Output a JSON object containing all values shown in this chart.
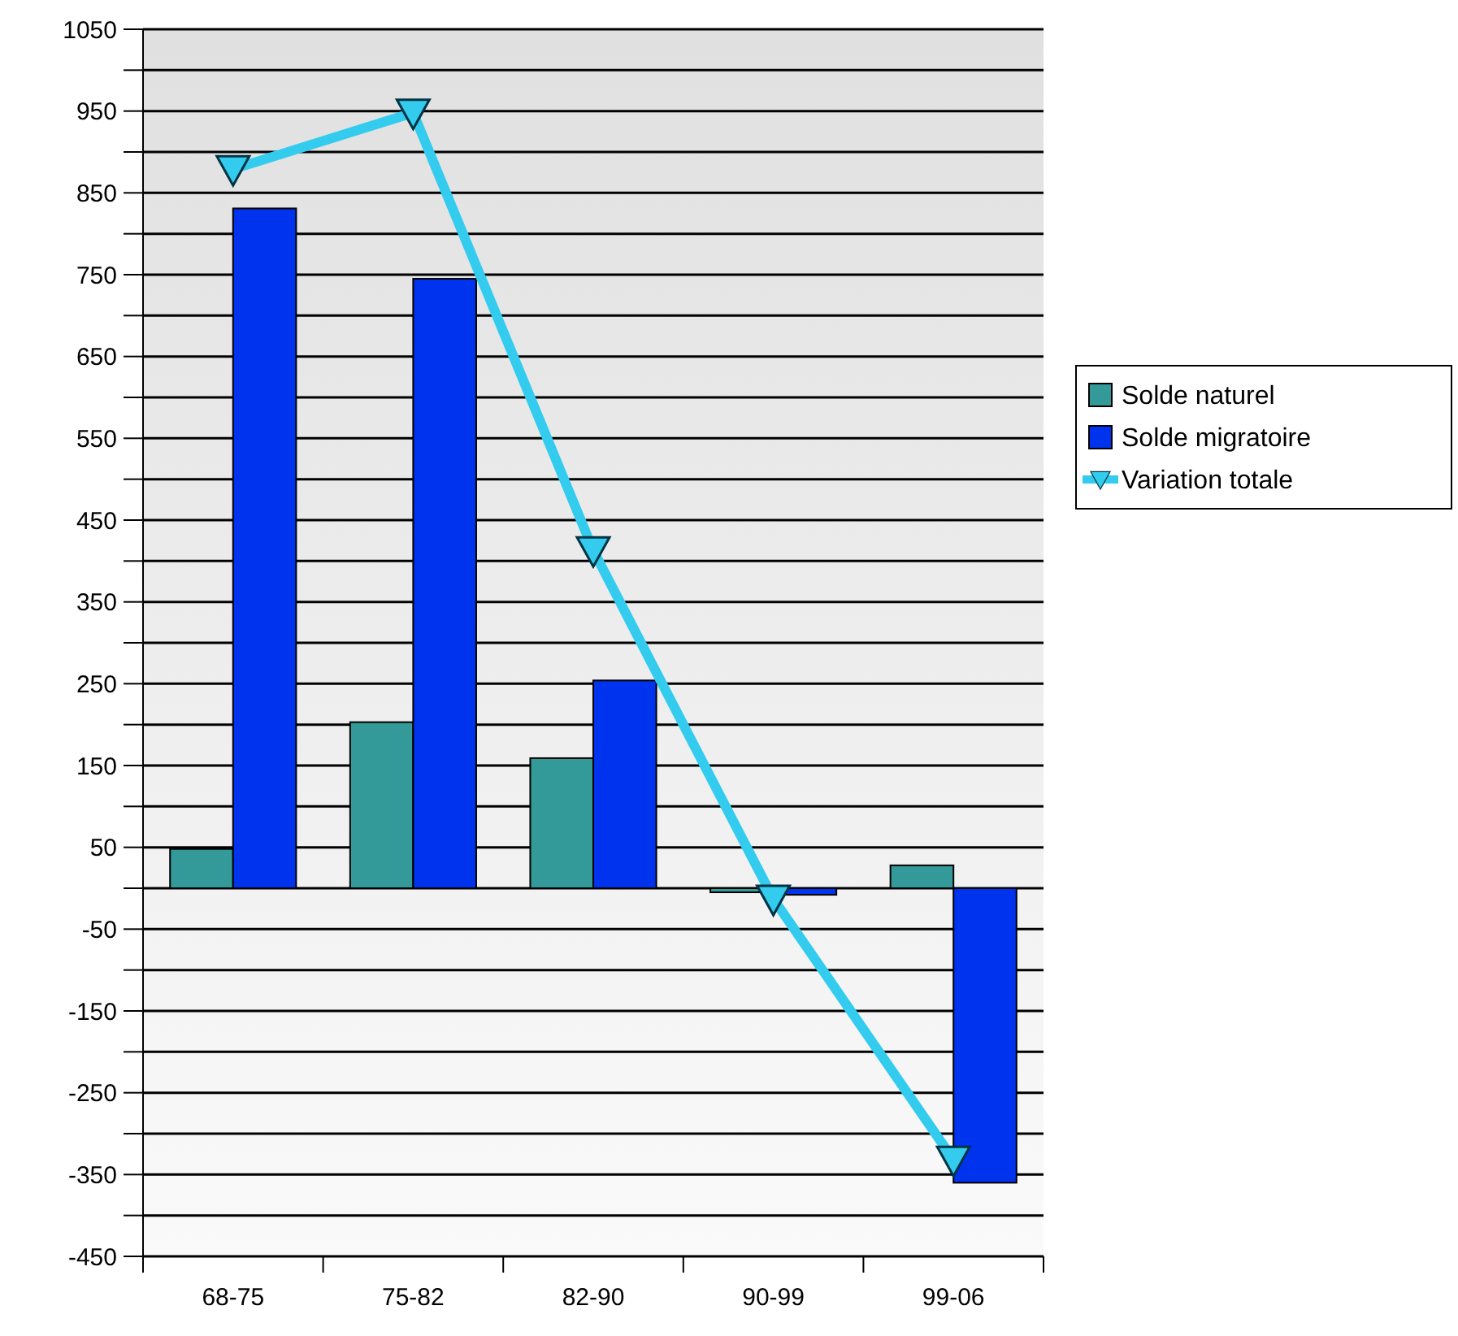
{
  "chart_data": {
    "type": "bar",
    "categories": [
      "68-75",
      "75-82",
      "82-90",
      "90-99",
      "99-06"
    ],
    "series": [
      {
        "name": "Solde naturel",
        "color": "#339999",
        "values": [
          48,
          203,
          159,
          -5,
          28
        ]
      },
      {
        "name": "Solde migratoire",
        "color": "#0033ee",
        "values": [
          831,
          745,
          254,
          -8,
          -360
        ]
      },
      {
        "name": "Variation totale",
        "type": "line",
        "color": "#33ccee",
        "marker": "triangle",
        "values": [
          879,
          948,
          413,
          -13,
          -332
        ]
      }
    ],
    "ylim": [
      -450,
      1050
    ],
    "yticks": [
      -450,
      {
        "value": -400,
        "label": null
      },
      -350,
      {
        "value": -300,
        "label": null
      },
      -250,
      {
        "value": -200,
        "label": null
      },
      -150,
      {
        "value": -100,
        "label": null
      },
      -50,
      {
        "value": 0,
        "label": null
      },
      50,
      {
        "value": 100,
        "label": null
      },
      150,
      {
        "value": 200,
        "label": null
      },
      250,
      {
        "value": 300,
        "label": null
      },
      350,
      {
        "value": 400,
        "label": null
      },
      450,
      {
        "value": 500,
        "label": null
      },
      550,
      {
        "value": 600,
        "label": null
      },
      650,
      {
        "value": 700,
        "label": null
      },
      750,
      {
        "value": 800,
        "label": null
      },
      850,
      {
        "value": 900,
        "label": null
      },
      950,
      {
        "value": 1000,
        "label": null
      },
      1050
    ],
    "grid": "y",
    "legend": "right"
  }
}
